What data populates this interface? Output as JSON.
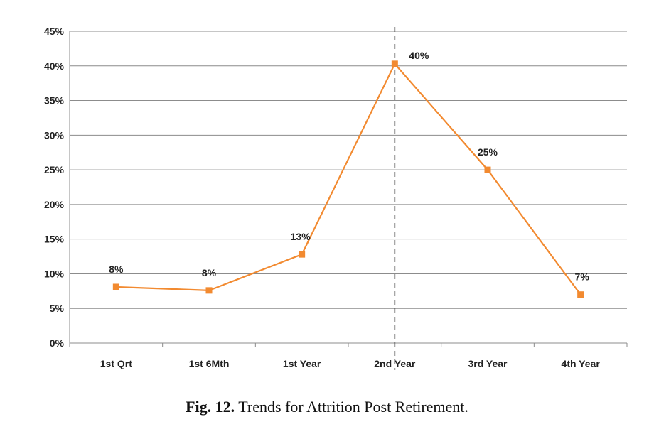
{
  "figure": {
    "caption_label": "Fig. 12.",
    "caption_text": "Trends for Attrition Post Retirement."
  },
  "chart_data": {
    "type": "line",
    "title": "",
    "xlabel": "",
    "ylabel": "",
    "categories": [
      "1st Qrt",
      "1st 6Mth",
      "1st Year",
      "2nd Year",
      "3rd Year",
      "4th Year"
    ],
    "series": [
      {
        "values": [
          8.1,
          7.6,
          12.8,
          40.3,
          25.0,
          7.0
        ],
        "data_labels": [
          "8%",
          "8%",
          "13%",
          "40%",
          "25%",
          "7%"
        ],
        "color": "#f28a30"
      }
    ],
    "ylim": [
      0,
      45
    ],
    "yticks": [
      0,
      5,
      10,
      15,
      20,
      25,
      30,
      35,
      40,
      45
    ],
    "ytick_labels": [
      "0%",
      "5%",
      "10%",
      "15%",
      "20%",
      "25%",
      "30%",
      "35%",
      "40%",
      "45%"
    ],
    "grid": true,
    "legend": "none",
    "reference_line": {
      "category": "2nd Year",
      "style": "dashed",
      "color": "#444444"
    },
    "gridline_color": "#8c8c8c"
  }
}
